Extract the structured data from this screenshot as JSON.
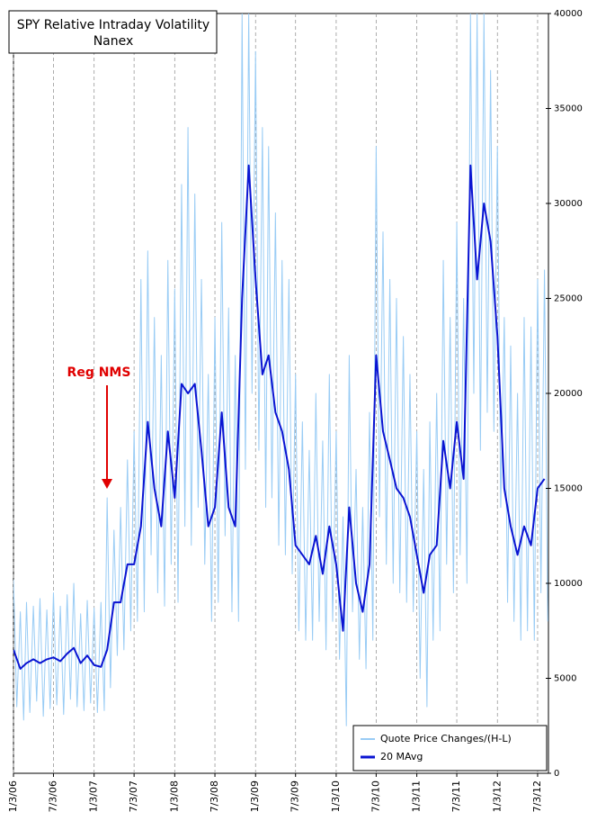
{
  "chart_data": {
    "type": "line",
    "title": "SPY Relative Intraday Volatility",
    "subtitle": "Nanex",
    "annotation": "Reg NMS",
    "xlim": [
      "2006-01-03",
      "2012-08-21"
    ],
    "xticks": [
      {
        "value": "2006-01-03",
        "label": "1/3/06"
      },
      {
        "value": "2006-07-03",
        "label": "7/3/06"
      },
      {
        "value": "2007-01-03",
        "label": "1/3/07"
      },
      {
        "value": "2007-07-03",
        "label": "7/3/07"
      },
      {
        "value": "2008-01-03",
        "label": "1/3/08"
      },
      {
        "value": "2008-07-03",
        "label": "7/3/08"
      },
      {
        "value": "2009-01-03",
        "label": "1/3/09"
      },
      {
        "value": "2009-07-03",
        "label": "7/3/09"
      },
      {
        "value": "2010-01-03",
        "label": "1/3/10"
      },
      {
        "value": "2010-07-03",
        "label": "7/3/10"
      },
      {
        "value": "2011-01-03",
        "label": "1/3/11"
      },
      {
        "value": "2011-07-03",
        "label": "7/3/11"
      },
      {
        "value": "2012-01-03",
        "label": "1/3/12"
      },
      {
        "value": "2012-07-03",
        "label": "7/3/12"
      }
    ],
    "ylim": [
      0,
      40000
    ],
    "yticks": [
      0,
      5000,
      10000,
      15000,
      20000,
      25000,
      30000,
      35000,
      40000
    ],
    "grid": "x",
    "legend": "bottom-right",
    "series": [
      {
        "name": "Quote Price Changes/(H-L)",
        "color": "#99ccf5",
        "width": 1,
        "x": [
          "2006-01-03",
          "2006-01-18",
          "2006-02-03",
          "2006-02-18",
          "2006-03-03",
          "2006-03-18",
          "2006-04-03",
          "2006-04-18",
          "2006-05-03",
          "2006-05-18",
          "2006-06-03",
          "2006-06-18",
          "2006-07-03",
          "2006-07-18",
          "2006-08-03",
          "2006-08-18",
          "2006-09-03",
          "2006-09-18",
          "2006-10-03",
          "2006-10-18",
          "2006-11-03",
          "2006-11-18",
          "2006-12-03",
          "2006-12-18",
          "2007-01-03",
          "2007-01-18",
          "2007-02-03",
          "2007-02-18",
          "2007-03-03",
          "2007-03-18",
          "2007-04-03",
          "2007-04-18",
          "2007-05-03",
          "2007-05-18",
          "2007-06-03",
          "2007-06-18",
          "2007-07-03",
          "2007-07-18",
          "2007-08-03",
          "2007-08-18",
          "2007-09-03",
          "2007-09-18",
          "2007-10-03",
          "2007-10-18",
          "2007-11-03",
          "2007-11-18",
          "2007-12-03",
          "2007-12-18",
          "2008-01-03",
          "2008-01-18",
          "2008-02-03",
          "2008-02-18",
          "2008-03-03",
          "2008-03-18",
          "2008-04-03",
          "2008-04-18",
          "2008-05-03",
          "2008-05-18",
          "2008-06-03",
          "2008-06-18",
          "2008-07-03",
          "2008-07-18",
          "2008-08-03",
          "2008-08-18",
          "2008-09-03",
          "2008-09-18",
          "2008-10-03",
          "2008-10-18",
          "2008-11-03",
          "2008-11-18",
          "2008-12-03",
          "2008-12-18",
          "2009-01-03",
          "2009-01-18",
          "2009-02-03",
          "2009-02-18",
          "2009-03-03",
          "2009-03-18",
          "2009-04-03",
          "2009-04-18",
          "2009-05-03",
          "2009-05-18",
          "2009-06-03",
          "2009-06-18",
          "2009-07-03",
          "2009-07-18",
          "2009-08-03",
          "2009-08-18",
          "2009-09-03",
          "2009-09-18",
          "2009-10-03",
          "2009-10-18",
          "2009-11-03",
          "2009-11-18",
          "2009-12-03",
          "2009-12-18",
          "2010-01-03",
          "2010-01-18",
          "2010-02-03",
          "2010-02-18",
          "2010-03-03",
          "2010-03-18",
          "2010-04-03",
          "2010-04-18",
          "2010-05-03",
          "2010-05-18",
          "2010-06-03",
          "2010-06-18",
          "2010-07-03",
          "2010-07-18",
          "2010-08-03",
          "2010-08-18",
          "2010-09-03",
          "2010-09-18",
          "2010-10-03",
          "2010-10-18",
          "2010-11-03",
          "2010-11-18",
          "2010-12-03",
          "2010-12-18",
          "2011-01-03",
          "2011-01-18",
          "2011-02-03",
          "2011-02-18",
          "2011-03-03",
          "2011-03-18",
          "2011-04-03",
          "2011-04-18",
          "2011-05-03",
          "2011-05-18",
          "2011-06-03",
          "2011-06-18",
          "2011-07-03",
          "2011-07-18",
          "2011-08-03",
          "2011-08-18",
          "2011-09-03",
          "2011-09-18",
          "2011-10-03",
          "2011-10-18",
          "2011-11-03",
          "2011-11-18",
          "2011-12-03",
          "2011-12-18",
          "2012-01-03",
          "2012-01-18",
          "2012-02-03",
          "2012-02-18",
          "2012-03-03",
          "2012-03-18",
          "2012-04-03",
          "2012-04-18",
          "2012-05-03",
          "2012-05-18",
          "2012-06-03",
          "2012-06-18",
          "2012-07-03",
          "2012-07-18",
          "2012-08-03",
          "2012-08-18"
        ],
        "values": [
          10200,
          3500,
          8500,
          2800,
          9000,
          3200,
          8800,
          3800,
          9200,
          3000,
          8600,
          3400,
          9500,
          3600,
          8800,
          3100,
          9400,
          3900,
          10000,
          3500,
          8400,
          3300,
          9100,
          3700,
          8700,
          3200,
          9000,
          3300,
          14500,
          4500,
          12800,
          6200,
          14000,
          6500,
          16500,
          7500,
          18000,
          8000,
          26000,
          8500,
          27500,
          11500,
          24000,
          9500,
          22000,
          8800,
          27000,
          11000,
          25500,
          9000,
          31000,
          13000,
          34000,
          12000,
          30500,
          14000,
          26000,
          11000,
          21000,
          8000,
          24000,
          9000,
          29000,
          12500,
          24500,
          8500,
          22000,
          8000,
          40000,
          16000,
          40000,
          20000,
          38000,
          17000,
          34000,
          14000,
          33000,
          14500,
          29500,
          12000,
          27000,
          11500,
          26000,
          10500,
          21000,
          7500,
          18500,
          7000,
          17000,
          7000,
          20000,
          8000,
          17500,
          6500,
          21000,
          8000,
          18000,
          6000,
          13500,
          2500,
          22000,
          8500,
          16000,
          6000,
          14000,
          5500,
          19000,
          7000,
          33000,
          13500,
          28500,
          11000,
          26000,
          10000,
          25000,
          9500,
          23000,
          9000,
          21000,
          8500,
          18000,
          5000,
          16000,
          3500,
          18500,
          7000,
          20000,
          7500,
          27000,
          11000,
          24000,
          9500,
          29000,
          11500,
          25000,
          10000,
          40000,
          20000,
          40000,
          17000,
          40000,
          19000,
          37000,
          18000,
          33000,
          14000,
          24000,
          9000,
          22500,
          8000,
          20000,
          7000,
          24000,
          7500,
          23500,
          7000,
          26000,
          9500,
          26500,
          8000
        ]
      },
      {
        "name": "20 MAvg",
        "color": "#0a14d2",
        "width": 2,
        "x": [
          "2006-01-03",
          "2006-02-03",
          "2006-03-03",
          "2006-04-03",
          "2006-05-03",
          "2006-06-03",
          "2006-07-03",
          "2006-08-03",
          "2006-09-03",
          "2006-10-03",
          "2006-11-03",
          "2006-12-03",
          "2007-01-03",
          "2007-02-03",
          "2007-03-03",
          "2007-04-03",
          "2007-05-03",
          "2007-06-03",
          "2007-07-03",
          "2007-08-03",
          "2007-09-03",
          "2007-10-03",
          "2007-11-03",
          "2007-12-03",
          "2008-01-03",
          "2008-02-03",
          "2008-03-03",
          "2008-04-03",
          "2008-05-03",
          "2008-06-03",
          "2008-07-03",
          "2008-08-03",
          "2008-09-03",
          "2008-10-03",
          "2008-11-03",
          "2008-12-03",
          "2009-01-03",
          "2009-02-03",
          "2009-03-03",
          "2009-04-03",
          "2009-05-03",
          "2009-06-03",
          "2009-07-03",
          "2009-08-03",
          "2009-09-03",
          "2009-10-03",
          "2009-11-03",
          "2009-12-03",
          "2010-01-03",
          "2010-02-03",
          "2010-03-03",
          "2010-04-03",
          "2010-05-03",
          "2010-06-03",
          "2010-07-03",
          "2010-08-03",
          "2010-09-03",
          "2010-10-03",
          "2010-11-03",
          "2010-12-03",
          "2011-01-03",
          "2011-02-03",
          "2011-03-03",
          "2011-04-03",
          "2011-05-03",
          "2011-06-03",
          "2011-07-03",
          "2011-08-03",
          "2011-09-03",
          "2011-10-03",
          "2011-11-03",
          "2011-12-03",
          "2012-01-03",
          "2012-02-03",
          "2012-03-03",
          "2012-04-03",
          "2012-05-03",
          "2012-06-03",
          "2012-07-03",
          "2012-08-03"
        ],
        "values": [
          6500,
          5500,
          5800,
          6000,
          5800,
          6000,
          6100,
          5900,
          6300,
          6600,
          5800,
          6200,
          5700,
          5600,
          6500,
          9000,
          9000,
          11000,
          11000,
          13000,
          18500,
          15000,
          13000,
          18000,
          14500,
          20500,
          20000,
          20500,
          17000,
          13000,
          14000,
          19000,
          14000,
          13000,
          25000,
          32000,
          26000,
          21000,
          22000,
          19000,
          18000,
          16000,
          12000,
          11500,
          11000,
          12500,
          10500,
          13000,
          11000,
          7500,
          14000,
          10000,
          8500,
          11000,
          22000,
          18000,
          16500,
          15000,
          14500,
          13500,
          11500,
          9500,
          11500,
          12000,
          17500,
          15000,
          18500,
          15500,
          32000,
          26000,
          30000,
          28000,
          23000,
          15000,
          13000,
          11500,
          13000,
          12000,
          15000,
          15500
        ]
      }
    ]
  }
}
